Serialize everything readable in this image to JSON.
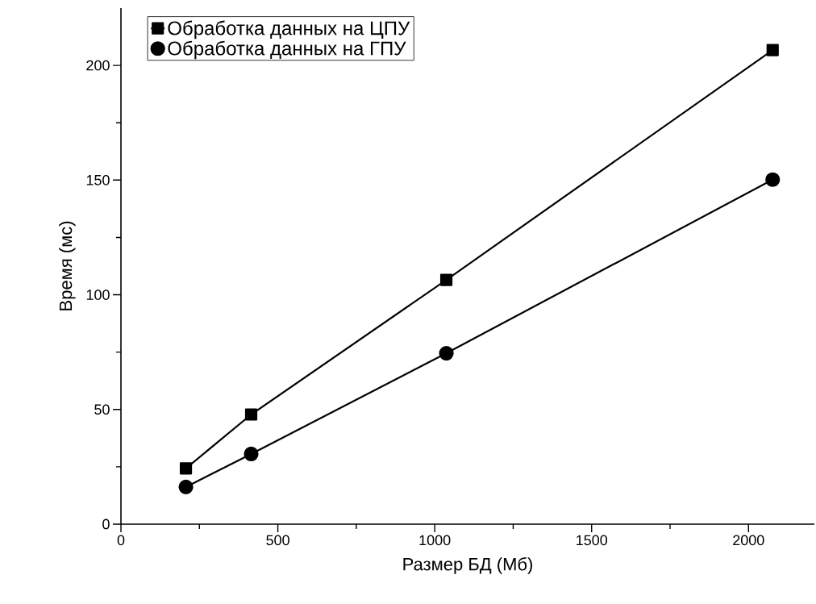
{
  "chart_data": {
    "type": "line",
    "xlabel": "Размер БД (Мб)",
    "ylabel": "Время (мс)",
    "x": [
      207,
      415,
      1037,
      2077
    ],
    "series": [
      {
        "name": "Обработка данных на ЦПУ",
        "color": "#000000",
        "marker": "square",
        "values": [
          24.3,
          47.8,
          106.5,
          206.7
        ]
      },
      {
        "name": "Обработка данных на ГПУ",
        "color": "#000000",
        "marker": "circle",
        "values": [
          16.2,
          30.6,
          74.5,
          150.2
        ]
      }
    ],
    "xlim": [
      0,
      2210
    ],
    "ylim": [
      0,
      225
    ],
    "xticks": [
      0,
      500,
      1000,
      1500,
      2000
    ],
    "yticks": [
      0,
      50,
      100,
      150,
      200
    ],
    "legend": "top left",
    "grid": false,
    "line_style": "solid"
  }
}
